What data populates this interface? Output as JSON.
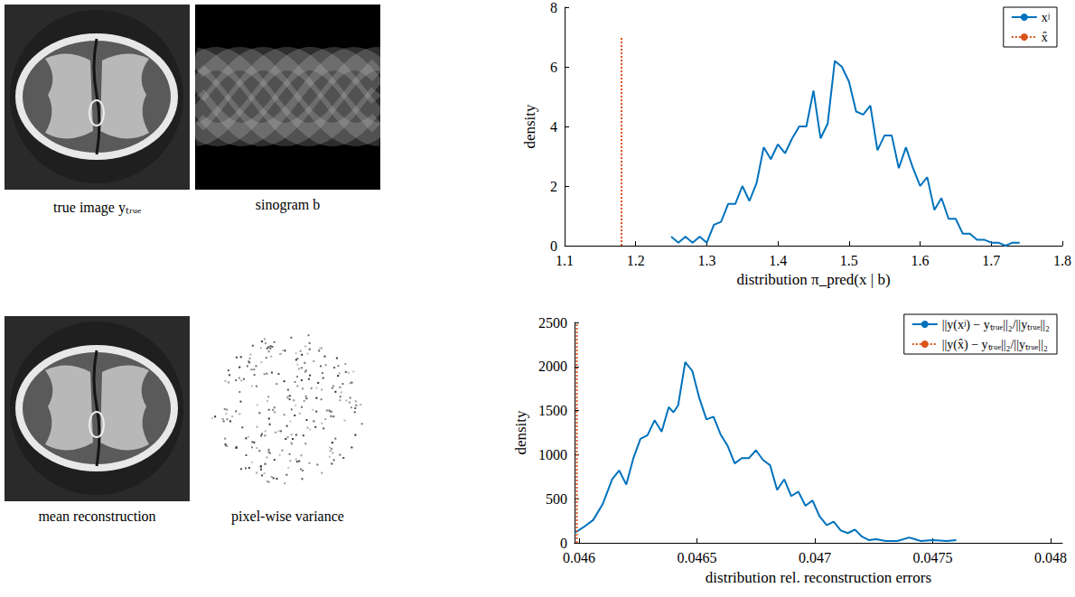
{
  "image_panels": [
    {
      "kind": "phantom",
      "caption": "true image yₜᵣᵤₑ"
    },
    {
      "kind": "sinogram",
      "caption": "sinogram b"
    },
    {
      "kind": "phantom",
      "caption": "mean reconstruction"
    },
    {
      "kind": "variance",
      "caption": "pixel-wise variance"
    }
  ],
  "chart_data": [
    {
      "type": "line",
      "xlabel": "distribution π_pred(x | b)",
      "ylabel": "density",
      "xlim": [
        1.1,
        1.8
      ],
      "xticks": [
        1.1,
        1.2,
        1.3,
        1.4,
        1.5,
        1.6,
        1.7,
        1.8
      ],
      "ylim": [
        0,
        8
      ],
      "yticks": [
        0,
        2,
        4,
        6,
        8
      ],
      "grid": false,
      "legend": "upper right",
      "series": [
        {
          "name": "xʲ",
          "color": "#0072bd",
          "line_style": "solid",
          "x": [
            1.25,
            1.26,
            1.27,
            1.28,
            1.29,
            1.3,
            1.31,
            1.32,
            1.33,
            1.34,
            1.35,
            1.36,
            1.37,
            1.38,
            1.39,
            1.4,
            1.41,
            1.42,
            1.43,
            1.44,
            1.45,
            1.46,
            1.47,
            1.48,
            1.49,
            1.5,
            1.51,
            1.52,
            1.53,
            1.54,
            1.55,
            1.56,
            1.57,
            1.58,
            1.59,
            1.6,
            1.61,
            1.62,
            1.63,
            1.64,
            1.65,
            1.66,
            1.67,
            1.68,
            1.69,
            1.7,
            1.71,
            1.72,
            1.73,
            1.74
          ],
          "values": [
            0.3,
            0.1,
            0.3,
            0.1,
            0.3,
            0.1,
            0.7,
            0.8,
            1.4,
            1.4,
            2.0,
            1.5,
            2.1,
            3.3,
            2.9,
            3.4,
            3.1,
            3.6,
            4.0,
            4.0,
            5.2,
            3.6,
            4.1,
            6.2,
            6.0,
            5.5,
            4.5,
            4.4,
            4.7,
            3.2,
            3.7,
            3.7,
            2.6,
            3.3,
            2.6,
            2.0,
            2.3,
            1.2,
            1.6,
            0.9,
            0.9,
            0.4,
            0.4,
            0.2,
            0.2,
            0.1,
            0.1,
            0.0,
            0.1,
            0.1
          ]
        },
        {
          "name": "x̂",
          "color": "#d95319",
          "line_style": "dotted",
          "x": [
            1.18,
            1.18
          ],
          "values": [
            0,
            7
          ]
        }
      ]
    },
    {
      "type": "line",
      "xlabel": "distribution rel. reconstruction errors",
      "ylabel": "density",
      "xlim": [
        0.04598,
        0.04805
      ],
      "xticks": [
        0.046,
        0.0465,
        0.047,
        0.0475,
        0.048
      ],
      "ylim": [
        0,
        2500
      ],
      "yticks": [
        0,
        500,
        1000,
        1500,
        2000,
        2500
      ],
      "grid": false,
      "legend": "upper right",
      "series": [
        {
          "name": "||y(xʲ) − yₜᵣᵤₑ||₂/||yₜᵣᵤₑ||₂",
          "color": "#0072bd",
          "line_style": "solid",
          "x": [
            0.04598,
            0.04602,
            0.04606,
            0.0461,
            0.04614,
            0.04617,
            0.0462,
            0.04623,
            0.04626,
            0.04629,
            0.04632,
            0.04635,
            0.04638,
            0.0464,
            0.04642,
            0.04645,
            0.04648,
            0.04651,
            0.04654,
            0.04657,
            0.0466,
            0.04663,
            0.04666,
            0.04669,
            0.04672,
            0.04675,
            0.04678,
            0.04681,
            0.04684,
            0.04687,
            0.0469,
            0.04693,
            0.04696,
            0.04699,
            0.04702,
            0.04705,
            0.04708,
            0.04711,
            0.04714,
            0.04717,
            0.0472,
            0.04723,
            0.04726,
            0.0473,
            0.04735,
            0.0474,
            0.04745,
            0.0475,
            0.04756,
            0.0476
          ],
          "values": [
            110,
            180,
            260,
            440,
            720,
            820,
            660,
            960,
            1180,
            1220,
            1390,
            1260,
            1540,
            1480,
            1560,
            2050,
            1950,
            1640,
            1400,
            1430,
            1230,
            1100,
            900,
            960,
            960,
            1050,
            940,
            880,
            600,
            720,
            530,
            580,
            420,
            480,
            300,
            200,
            240,
            140,
            110,
            150,
            70,
            30,
            40,
            20,
            20,
            60,
            20,
            30,
            20,
            30
          ]
        },
        {
          "name": "||y(x̂) − yₜᵣᵤₑ||₂/||yₜᵣᵤₑ||₂",
          "color": "#d95319",
          "line_style": "dotted",
          "x": [
            0.04599,
            0.04599
          ],
          "values": [
            0,
            2500
          ]
        }
      ]
    }
  ]
}
